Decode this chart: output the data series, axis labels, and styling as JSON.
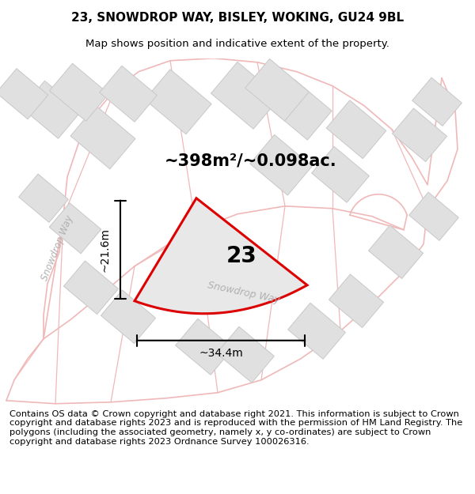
{
  "title_line1": "23, SNOWDROP WAY, BISLEY, WOKING, GU24 9BL",
  "title_line2": "Map shows position and indicative extent of the property.",
  "area_label": "~398m²/~0.098ac.",
  "plot_number": "23",
  "dim_width": "~34.4m",
  "dim_height": "~21.6m",
  "road_label_diag": "Snowdrop Way",
  "road_label_left": "Snowdrop Way",
  "footer_text": "Contains OS data © Crown copyright and database right 2021. This information is subject to Crown copyright and database rights 2023 and is reproduced with the permission of HM Land Registry. The polygons (including the associated geometry, namely x, y co-ordinates) are subject to Crown copyright and database rights 2023 Ordnance Survey 100026316.",
  "bg_color": "#ffffff",
  "road_line_color": "#f0b8b8",
  "road_fill_color": "#f5d8d8",
  "bldg_fill": "#e0e0e0",
  "bldg_edge": "#c8c8c8",
  "plot_fill": "#e8e8e8",
  "plot_edge": "#dd0000",
  "road_label_color": "#b0b0b0",
  "title_fontsize": 11,
  "subtitle_fontsize": 9.5,
  "area_fontsize": 15,
  "plot_number_fontsize": 20,
  "dim_fontsize": 10,
  "footer_fontsize": 8.2
}
